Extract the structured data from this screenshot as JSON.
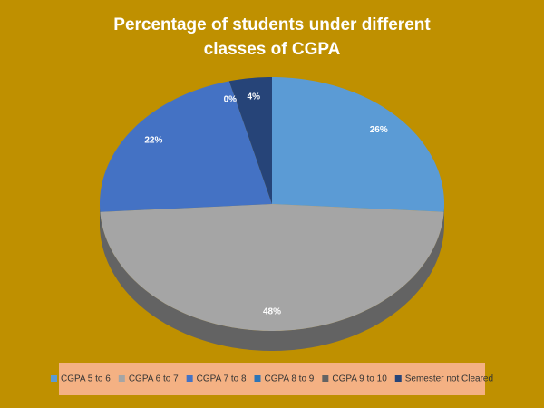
{
  "chart_data": {
    "type": "pie",
    "title": "Percentage of students under different classes of CGPA",
    "categories": [
      "CGPA 5 to 6",
      "CGPA 6 to 7",
      "CGPA 7 to 8",
      "CGPA 8 to 9",
      "CGPA 9 to 10",
      "Semester not Cleared"
    ],
    "values": [
      26,
      48,
      22,
      0,
      0,
      4
    ],
    "value_labels": [
      "26%",
      "48%",
      "22%",
      "0%",
      null,
      "4%"
    ],
    "colors": [
      "#5b9bd5",
      "#a5a5a5",
      "#4472c4",
      "#2e75b6",
      "#636363",
      "#264478"
    ],
    "legend": "bottom"
  }
}
